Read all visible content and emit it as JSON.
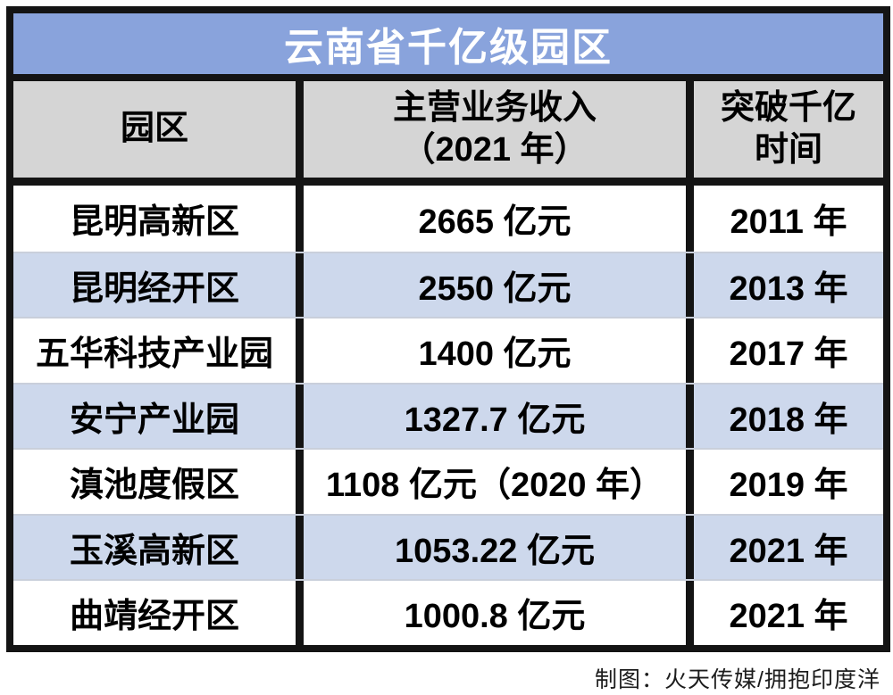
{
  "title": "云南省千亿级园区",
  "header": {
    "col_park": {
      "line1": "园区",
      "line2": ""
    },
    "col_revenue": {
      "line1": "主营业务收入",
      "line2": "（2021 年）"
    },
    "col_year": {
      "line1": "突破千亿",
      "line2": "时间"
    }
  },
  "rows": [
    {
      "park": "昆明高新区",
      "revenue": "2665 亿元",
      "year": "2011 年"
    },
    {
      "park": "昆明经开区",
      "revenue": "2550 亿元",
      "year": "2013 年"
    },
    {
      "park": "五华科技产业园",
      "revenue": "1400 亿元",
      "year": "2017 年"
    },
    {
      "park": "安宁产业园",
      "revenue": "1327.7 亿元",
      "year": "2018 年"
    },
    {
      "park": "滇池度假区",
      "revenue": "1108 亿元（2020 年）",
      "year": "2019 年"
    },
    {
      "park": "玉溪高新区",
      "revenue": "1053.22 亿元",
      "year": "2021 年"
    },
    {
      "park": "曲靖经开区",
      "revenue": "1000.8 亿元",
      "year": "2021 年"
    }
  ],
  "footer": "制图：火天传媒/拥抱印度洋",
  "colors": {
    "title_bg": "#89A3DC",
    "header_bg": "#D5D5D5",
    "alt_row_bg": "#CDD8EC",
    "border": "#141414",
    "title_text": "#ffffff",
    "body_text": "#000000"
  },
  "chart_data": {
    "type": "table",
    "title": "云南省千亿级园区",
    "columns": [
      "园区",
      "主营业务收入（2021 年）",
      "突破千亿时间"
    ],
    "rows": [
      [
        "昆明高新区",
        "2665 亿元",
        "2011 年"
      ],
      [
        "昆明经开区",
        "2550 亿元",
        "2013 年"
      ],
      [
        "五华科技产业园",
        "1400 亿元",
        "2017 年"
      ],
      [
        "安宁产业园",
        "1327.7 亿元",
        "2018 年"
      ],
      [
        "滇池度假区",
        "1108 亿元（2020 年）",
        "2019 年"
      ],
      [
        "玉溪高新区",
        "1053.22 亿元",
        "2021 年"
      ],
      [
        "曲靖经开区",
        "1000.8 亿元",
        "2021 年"
      ]
    ],
    "revenue_values_billion_yuan": [
      2665,
      2550,
      1400,
      1327.7,
      1108,
      1053.22,
      1000.8
    ],
    "breakthrough_years": [
      2011,
      2013,
      2017,
      2018,
      2019,
      2021,
      2021
    ],
    "note": "滇池度假区 revenue is for year 2020",
    "credit": "制图：火天传媒/拥抱印度洋"
  }
}
